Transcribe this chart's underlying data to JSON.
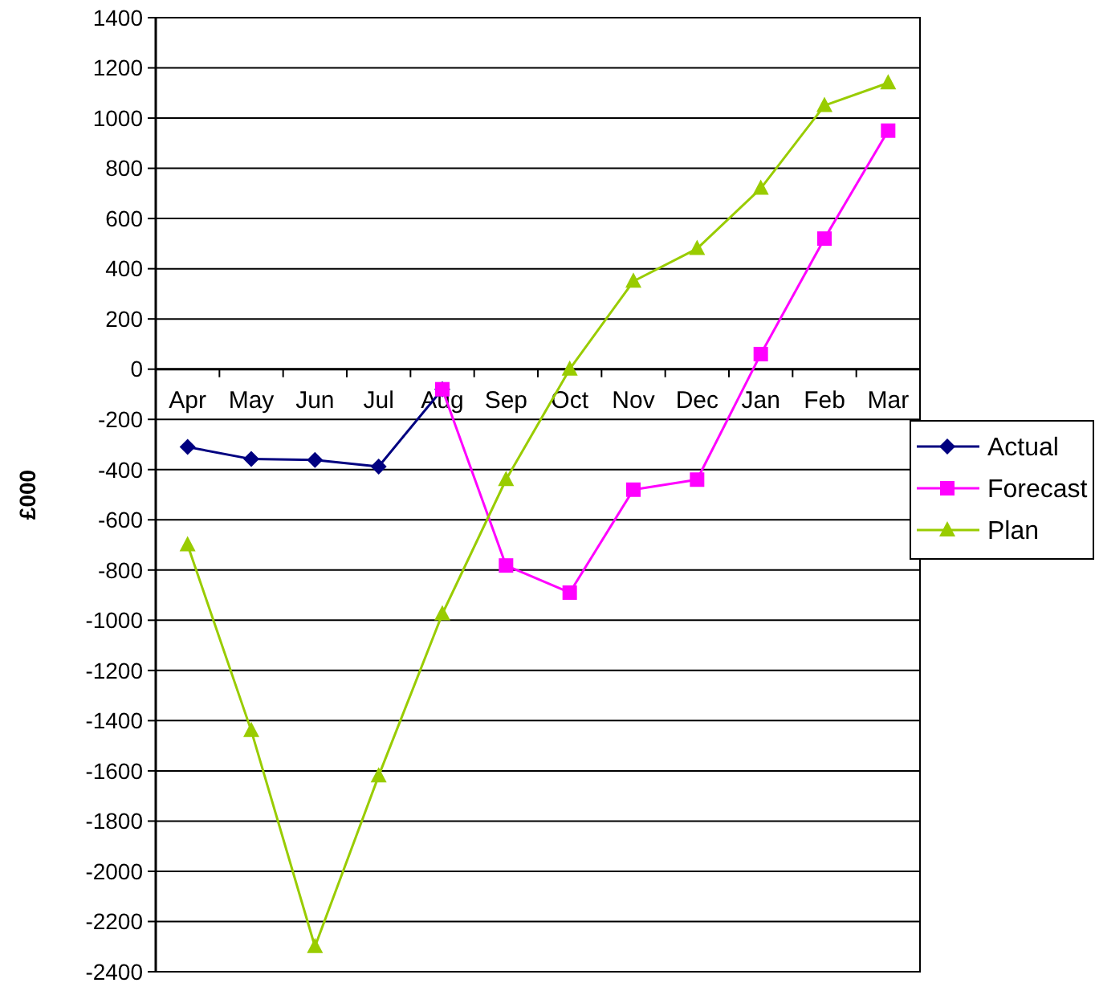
{
  "chart_data": {
    "type": "line",
    "ylabel": "£000",
    "categories": [
      "Apr",
      "May",
      "Jun",
      "Jul",
      "Aug",
      "Sep",
      "Oct",
      "Nov",
      "Dec",
      "Jan",
      "Feb",
      "Mar"
    ],
    "series": [
      {
        "name": "Actual",
        "color": "#000080",
        "marker": "diamond",
        "values": [
          -310,
          -358,
          -362,
          -388,
          -80,
          null,
          null,
          null,
          null,
          null,
          null,
          null
        ]
      },
      {
        "name": "Forecast",
        "color": "#ff00ff",
        "marker": "square",
        "values": [
          null,
          null,
          null,
          null,
          -80,
          -782,
          -890,
          -480,
          -440,
          60,
          520,
          950
        ]
      },
      {
        "name": "Plan",
        "color": "#99cc00",
        "marker": "triangle",
        "values": [
          -700,
          -1440,
          -2300,
          -1620,
          -975,
          -440,
          0,
          350,
          480,
          720,
          1050,
          1140
        ]
      }
    ],
    "ylim": [
      -2400,
      1400
    ],
    "yticks": [
      -2400,
      -2200,
      -2000,
      -1800,
      -1600,
      -1400,
      -1200,
      -1000,
      -800,
      -600,
      -400,
      -200,
      0,
      200,
      400,
      600,
      800,
      1000,
      1200,
      1400
    ],
    "grid": "y",
    "legend": "right"
  }
}
